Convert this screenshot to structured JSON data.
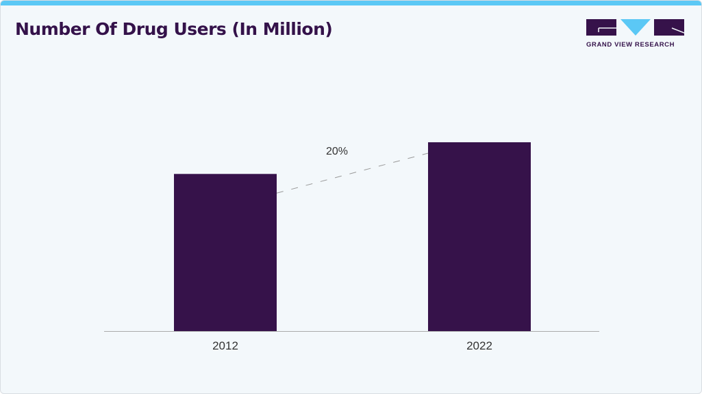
{
  "header": {
    "title": "Number Of Drug Users (In Million)"
  },
  "logo": {
    "text": "GRAND VIEW RESEARCH"
  },
  "colors": {
    "bar": "#36124a",
    "accent": "#5bc8f5",
    "title": "#34124a"
  },
  "chart_data": {
    "type": "bar",
    "title": "Number Of Drug Users (In Million)",
    "categories": [
      "2012",
      "2022"
    ],
    "values": [
      243,
      292
    ],
    "xlabel": "",
    "ylabel": "",
    "ylim": [
      0,
      320
    ],
    "grid": false,
    "annotation": {
      "text": "20%",
      "from": "2012",
      "to": "2022",
      "style": "dashed-line"
    }
  }
}
